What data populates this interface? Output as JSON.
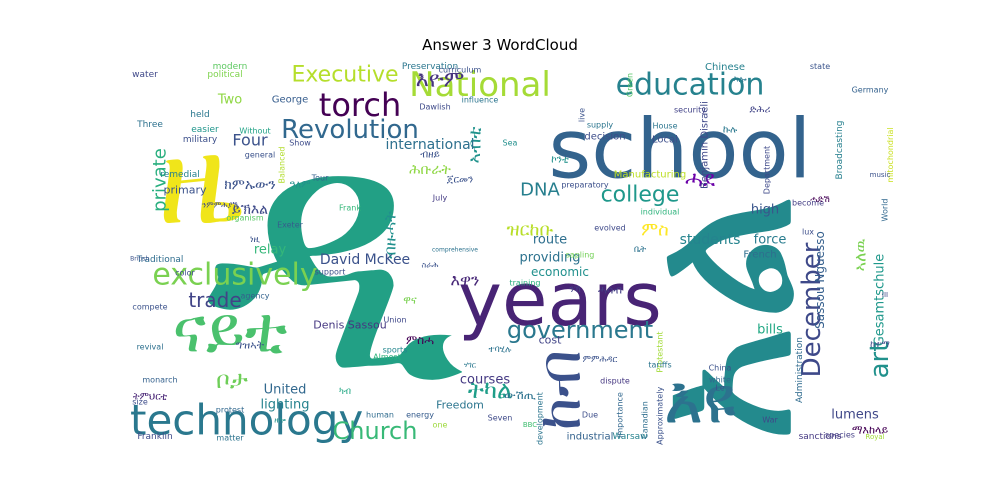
{
  "chart_data": {
    "type": "wordcloud",
    "title": "Answer 3 WordCloud",
    "colormap": "viridis",
    "words": [
      {
        "text": "ዲ",
        "size": 100,
        "color": "#22a085"
      },
      {
        "text": "school",
        "size": 82,
        "color": "#33638d"
      },
      {
        "text": "አል",
        "size": 80,
        "color": "#238a8d"
      },
      {
        "text": "ዜ",
        "size": 78,
        "color": "#f0e51a"
      },
      {
        "text": "years",
        "size": 74,
        "color": "#482475"
      },
      {
        "text": "ናይቲ",
        "size": 70,
        "color": "#4ac16d"
      },
      {
        "text": "እዩ",
        "size": 66,
        "color": "#2c728e"
      },
      {
        "text": "ከብ",
        "size": 60,
        "color": "#3b518b"
      },
      {
        "text": "technology",
        "size": 42,
        "color": "#2a788e"
      },
      {
        "text": "National",
        "size": 34,
        "color": "#a5db36"
      },
      {
        "text": "torch",
        "size": 32,
        "color": "#440154"
      },
      {
        "text": "education",
        "size": 30,
        "color": "#26828e"
      },
      {
        "text": "exclusively",
        "size": 30,
        "color": "#7ad151"
      },
      {
        "text": "Revolution",
        "size": 26,
        "color": "#31688e"
      },
      {
        "text": "government",
        "size": 24,
        "color": "#2a788e"
      },
      {
        "text": "Church",
        "size": 24,
        "color": "#38b977"
      },
      {
        "text": "December",
        "size": 26,
        "color": "#3e4989"
      },
      {
        "text": "art",
        "size": 26,
        "color": "#21918c"
      },
      {
        "text": "ትካል",
        "size": 24,
        "color": "#1f9e89"
      },
      {
        "text": "ቦታ",
        "size": 24,
        "color": "#6ece58"
      },
      {
        "text": "Executive",
        "size": 22,
        "color": "#b5de2b"
      },
      {
        "text": "እዮም",
        "size": 22,
        "color": "#46337e"
      },
      {
        "text": "college",
        "size": 22,
        "color": "#1f988b"
      },
      {
        "text": "ሓደ",
        "size": 22,
        "color": "#6a00a8"
      },
      {
        "text": "trade",
        "size": 20,
        "color": "#414487"
      },
      {
        "text": "DNA",
        "size": 18,
        "color": "#277f8e"
      },
      {
        "text": "ምስ",
        "size": 18,
        "color": "#fde725"
      },
      {
        "text": "ዝርከቡ",
        "size": 18,
        "color": "#b8de29"
      },
      {
        "text": "private",
        "size": 18,
        "color": "#29af7f"
      },
      {
        "text": "Four",
        "size": 16,
        "color": "#3b528b"
      },
      {
        "text": "ኣብቲ",
        "size": 18,
        "color": "#20928c"
      },
      {
        "text": "ኣለዉ",
        "size": 16,
        "color": "#7ad151"
      },
      {
        "text": "እዋን",
        "size": 16,
        "color": "#482878"
      },
      {
        "text": "international",
        "size": 14,
        "color": "#2d708e"
      },
      {
        "text": "students",
        "size": 14,
        "color": "#25848e"
      },
      {
        "text": "David McKee",
        "size": 14,
        "color": "#3b528b"
      },
      {
        "text": "courses",
        "size": 13,
        "color": "#443983"
      },
      {
        "text": "United",
        "size": 13,
        "color": "#31688e"
      },
      {
        "text": "lighting",
        "size": 13,
        "color": "#26828e"
      },
      {
        "text": "Gesamtschule",
        "size": 13,
        "color": "#1f988b"
      },
      {
        "text": "lumens",
        "size": 13,
        "color": "#3f4788"
      },
      {
        "text": "providing",
        "size": 13,
        "color": "#2c728e"
      },
      {
        "text": "economic",
        "size": 12,
        "color": "#21908d"
      },
      {
        "text": "relay",
        "size": 13,
        "color": "#35b779"
      },
      {
        "text": "high",
        "size": 13,
        "color": "#39568c"
      },
      {
        "text": "route",
        "size": 13,
        "color": "#2e6f8e"
      },
      {
        "text": "force",
        "size": 13,
        "color": "#287c8e"
      },
      {
        "text": "bills",
        "size": 13,
        "color": "#22a884"
      },
      {
        "text": "Sassou Nguesso",
        "size": 12,
        "color": "#355f8d"
      },
      {
        "text": "Denis Sassou",
        "size": 11,
        "color": "#453781"
      },
      {
        "text": "primary",
        "size": 11,
        "color": "#3b528b"
      },
      {
        "text": "Two",
        "size": 13,
        "color": "#8fd744"
      },
      {
        "text": "Freedom",
        "size": 11,
        "color": "#2b758e"
      },
      {
        "text": "cost",
        "size": 11,
        "color": "#414487"
      },
      {
        "text": "Benjamin Disraeli",
        "size": 10,
        "color": "#3f4889"
      },
      {
        "text": "Manufacturing",
        "size": 10,
        "color": "#bddf26"
      },
      {
        "text": "Local",
        "size": 10,
        "color": "#3d4e8a"
      },
      {
        "text": "decision",
        "size": 10,
        "color": "#3d4d8a"
      },
      {
        "text": "French",
        "size": 10,
        "color": "#2e6e8e"
      },
      {
        "text": "Chinese",
        "size": 10,
        "color": "#26818e"
      },
      {
        "text": "George",
        "size": 10,
        "color": "#365d8d"
      },
      {
        "text": "Broadcasting",
        "size": 9,
        "color": "#27808e"
      },
      {
        "text": "Administration",
        "size": 9,
        "color": "#2f6b8e"
      },
      {
        "text": "industrial",
        "size": 10,
        "color": "#33628d"
      },
      {
        "text": "Warsaw",
        "size": 9,
        "color": "#26828e"
      },
      {
        "text": "Franklin",
        "size": 9,
        "color": "#3e4a89"
      },
      {
        "text": "sanctions",
        "size": 9,
        "color": "#453882"
      },
      {
        "text": "Preservation",
        "size": 9,
        "color": "#2a768e"
      },
      {
        "text": "modern",
        "size": 9,
        "color": "#5ec962"
      },
      {
        "text": "political",
        "size": 9,
        "color": "#7fd34e"
      },
      {
        "text": "water",
        "size": 9,
        "color": "#3f4889"
      },
      {
        "text": "Three",
        "size": 9,
        "color": "#2d718e"
      },
      {
        "text": "easier",
        "size": 9,
        "color": "#1f958b"
      },
      {
        "text": "military",
        "size": 9,
        "color": "#3c4f8a"
      },
      {
        "text": "held",
        "size": 9,
        "color": "#2a778e"
      },
      {
        "text": "remedial",
        "size": 9,
        "color": "#26828e"
      },
      {
        "text": "Without",
        "size": 8,
        "color": "#20a386"
      },
      {
        "text": "general",
        "size": 8,
        "color": "#3b528b"
      },
      {
        "text": "Traditional",
        "size": 9,
        "color": "#2e6d8e"
      },
      {
        "text": "color",
        "size": 8,
        "color": "#3e4c8a"
      },
      {
        "text": "agency",
        "size": 8,
        "color": "#33628d"
      },
      {
        "text": "compete",
        "size": 8,
        "color": "#3b528b"
      },
      {
        "text": "revival",
        "size": 8,
        "color": "#2d708e"
      },
      {
        "text": "monarch",
        "size": 8,
        "color": "#34618d"
      },
      {
        "text": "size",
        "size": 8,
        "color": "#3d4d8a"
      },
      {
        "text": "protest",
        "size": 8,
        "color": "#31688e"
      },
      {
        "text": "matter",
        "size": 8,
        "color": "#2c738e"
      },
      {
        "text": "Tour",
        "size": 8,
        "color": "#34608d"
      },
      {
        "text": "Frank",
        "size": 8,
        "color": "#35b779"
      },
      {
        "text": "July",
        "size": 8,
        "color": "#443b84"
      },
      {
        "text": "Exeter",
        "size": 8,
        "color": "#355e8d"
      },
      {
        "text": "support",
        "size": 8,
        "color": "#3c508b"
      },
      {
        "text": "training",
        "size": 8,
        "color": "#2ab07f"
      },
      {
        "text": "sapling",
        "size": 8,
        "color": "#73d056"
      },
      {
        "text": "Union",
        "size": 8,
        "color": "#3f4889"
      },
      {
        "text": "sports",
        "size": 8,
        "color": "#24878e"
      },
      {
        "text": "Almost",
        "size": 8,
        "color": "#2eb37c"
      },
      {
        "text": "human",
        "size": 8,
        "color": "#2f6c8e"
      },
      {
        "text": "energy",
        "size": 8,
        "color": "#365c8d"
      },
      {
        "text": "one",
        "size": 8,
        "color": "#9dd93b"
      },
      {
        "text": "Seven",
        "size": 8,
        "color": "#3e4a89"
      },
      {
        "text": "BBC",
        "size": 7,
        "color": "#42be71"
      },
      {
        "text": "development",
        "size": 8,
        "color": "#2b748e"
      },
      {
        "text": "Due",
        "size": 8,
        "color": "#3d4e8a"
      },
      {
        "text": "importance",
        "size": 8,
        "color": "#31678e"
      },
      {
        "text": "Canadian",
        "size": 8,
        "color": "#2e6e8e"
      },
      {
        "text": "Approximately",
        "size": 8,
        "color": "#3b528b"
      },
      {
        "text": "dispute",
        "size": 8,
        "color": "#453781"
      },
      {
        "text": "Protestant",
        "size": 8,
        "color": "#a2da37"
      },
      {
        "text": "tariffs",
        "size": 8,
        "color": "#2b748e"
      },
      {
        "text": "China",
        "size": 8,
        "color": "#3b528b"
      },
      {
        "text": "white",
        "size": 8,
        "color": "#31688e"
      },
      {
        "text": "War",
        "size": 8,
        "color": "#3f4889"
      },
      {
        "text": "species",
        "size": 8,
        "color": "#433e85"
      },
      {
        "text": "Royal",
        "size": 7,
        "color": "#a0da39"
      },
      {
        "text": "state",
        "size": 8,
        "color": "#3a548c"
      },
      {
        "text": "Germany",
        "size": 8,
        "color": "#34618d"
      },
      {
        "text": "mitochondrial",
        "size": 8,
        "color": "#cae11f"
      },
      {
        "text": "House",
        "size": 8,
        "color": "#2b758e"
      },
      {
        "text": "Department",
        "size": 8,
        "color": "#3e4989"
      },
      {
        "text": "security",
        "size": 8,
        "color": "#414287"
      },
      {
        "text": "supply",
        "size": 8,
        "color": "#2b758e"
      },
      {
        "text": "Sea",
        "size": 8,
        "color": "#218f8d"
      },
      {
        "text": "live",
        "size": 8,
        "color": "#3b528b"
      },
      {
        "text": "Green",
        "size": 8,
        "color": "#56c667"
      },
      {
        "text": "influence",
        "size": 8,
        "color": "#2b748e"
      },
      {
        "text": "curriculum",
        "size": 8,
        "color": "#3b528b"
      },
      {
        "text": "Dawlish",
        "size": 8,
        "color": "#3e4a89"
      },
      {
        "text": "Show",
        "size": 8,
        "color": "#3e4c8a"
      },
      {
        "text": "Balanced",
        "size": 8,
        "color": "#b2dd2d"
      },
      {
        "text": "organism",
        "size": 8,
        "color": "#58c765"
      },
      {
        "text": "evolved",
        "size": 8,
        "color": "#3e4989"
      },
      {
        "text": "preparatory",
        "size": 8,
        "color": "#3c508b"
      },
      {
        "text": "individual",
        "size": 8,
        "color": "#2eb37c"
      },
      {
        "text": "become",
        "size": 8,
        "color": "#433d84"
      },
      {
        "text": "lux",
        "size": 8,
        "color": "#3d4e8a"
      },
      {
        "text": "World",
        "size": 8,
        "color": "#31688e"
      },
      {
        "text": "music",
        "size": 7,
        "color": "#3b528b"
      },
      {
        "text": "British",
        "size": 6,
        "color": "#3b528b"
      },
      {
        "text": "comprehensive",
        "size": 6,
        "color": "#2c728e"
      },
      {
        "text": "III",
        "size": 7,
        "color": "#3e4a89"
      },
      {
        "text": "Le",
        "size": 8,
        "color": "#3b528b"
      },
      {
        "text": "ብዙሓት",
        "size": 16,
        "color": "#21908d"
      },
      {
        "text": "ሕቡራት",
        "size": 14,
        "color": "#8fd744"
      },
      {
        "text": "ክምኡውን",
        "size": 14,
        "color": "#3b528b"
      },
      {
        "text": "ይኽእል",
        "size": 14,
        "color": "#3e4a89"
      },
      {
        "text": "ምስሓ",
        "size": 12,
        "color": "#440154"
      },
      {
        "text": "ውሽጢ",
        "size": 12,
        "color": "#2c728e"
      },
      {
        "text": "ሓሳብ",
        "size": 11,
        "color": "#433e85"
      },
      {
        "text": "ማእከላይ",
        "size": 11,
        "color": "#440154"
      },
      {
        "text": "ዋና",
        "size": 11,
        "color": "#7ad151"
      },
      {
        "text": "ግዝኣት",
        "size": 11,
        "color": "#3b528b"
      },
      {
        "text": "ኮንቲ",
        "size": 10,
        "color": "#21918c"
      },
      {
        "text": "ጀርመን",
        "size": 10,
        "color": "#3b528b"
      },
      {
        "text": "ኩሉ",
        "size": 10,
        "color": "#2a788e"
      },
      {
        "text": "ድሕሪ",
        "size": 10,
        "color": "#414487"
      },
      {
        "text": "ዓለም",
        "size": 10,
        "color": "#21918c"
      },
      {
        "text": "ብዘይ",
        "size": 10,
        "color": "#3b528b"
      },
      {
        "text": "ትምህርቲ",
        "size": 10,
        "color": "#482475"
      },
      {
        "text": "ተባሂሉ",
        "size": 9,
        "color": "#2c728e"
      },
      {
        "text": "ከተማ",
        "size": 9,
        "color": "#3e4989"
      },
      {
        "text": "ኣሎ",
        "size": 9,
        "color": "#2a788e"
      },
      {
        "text": "ነዚ",
        "size": 9,
        "color": "#3b528b"
      },
      {
        "text": "ካብ",
        "size": 9,
        "color": "#22a884"
      },
      {
        "text": "ሓድሽ",
        "size": 9,
        "color": "#440154"
      },
      {
        "text": "ምምሕዳር",
        "size": 9,
        "color": "#3b528b"
      },
      {
        "text": "ቤት",
        "size": 9,
        "color": "#2c728e"
      },
      {
        "text": "ንኽ",
        "size": 9,
        "color": "#414487"
      },
      {
        "text": "ዘሎ",
        "size": 8,
        "color": "#21918c"
      },
      {
        "text": "ስራሕ",
        "size": 8,
        "color": "#3b528b"
      },
      {
        "text": "ሃገር",
        "size": 8,
        "color": "#2a788e"
      },
      {
        "text": "ንምምሕያሽ",
        "size": 8,
        "color": "#3e4989"
      }
    ]
  }
}
